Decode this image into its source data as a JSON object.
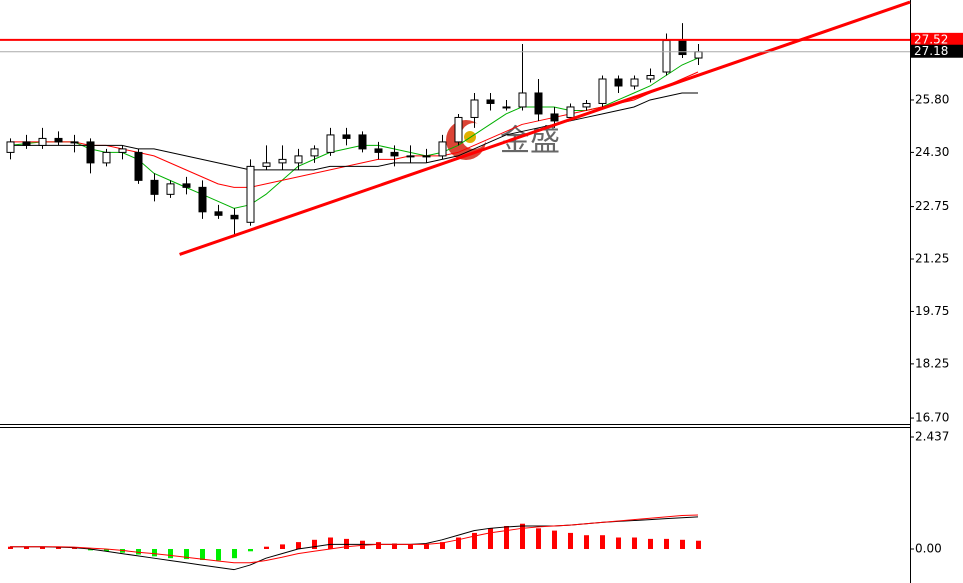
{
  "chart_data": [
    {
      "type": "candlestick",
      "watermark": "金盛",
      "ylim": [
        16.53,
        28.66
      ],
      "yticks": [
        {
          "value": 25.8,
          "label": "25.80"
        },
        {
          "value": 24.3,
          "label": "24.30"
        },
        22.75,
        21.25,
        19.75,
        18.25,
        {
          "value": 16.7,
          "label": "16.70"
        }
      ],
      "up_color": "#ffffff",
      "down_color": "#000000",
      "wick_color": "#000000",
      "open": [
        24.3,
        24.6,
        24.5,
        24.7,
        24.6,
        24.6,
        24.0,
        24.3,
        24.3,
        23.5,
        23.1,
        23.4,
        23.3,
        22.6,
        22.5,
        22.3,
        23.9,
        24.0,
        24.0,
        24.2,
        24.3,
        24.8,
        24.8,
        24.4,
        24.3,
        24.2,
        24.2,
        24.2,
        24.6,
        25.3,
        25.8,
        25.6,
        25.6,
        26.0,
        25.4,
        25.3,
        25.6,
        25.7,
        26.4,
        26.2,
        26.4,
        26.6,
        27.5,
        27.0
      ],
      "high": [
        24.7,
        24.8,
        25.0,
        24.9,
        24.8,
        24.7,
        24.4,
        24.5,
        24.4,
        23.7,
        23.5,
        23.6,
        23.5,
        22.8,
        22.7,
        24.1,
        24.5,
        24.5,
        24.4,
        24.5,
        25.0,
        25.0,
        24.9,
        24.6,
        24.5,
        24.5,
        24.4,
        24.8,
        25.4,
        26.0,
        26.0,
        25.8,
        27.4,
        26.4,
        25.6,
        25.7,
        25.8,
        26.5,
        26.5,
        26.5,
        26.7,
        27.7,
        28.0,
        27.4
      ],
      "low": [
        24.1,
        24.4,
        24.4,
        24.5,
        24.3,
        23.7,
        23.9,
        24.1,
        23.4,
        22.9,
        23.0,
        23.1,
        22.4,
        22.4,
        21.9,
        22.2,
        23.8,
        23.8,
        23.8,
        24.0,
        24.2,
        24.5,
        24.3,
        24.1,
        23.9,
        24.0,
        24.0,
        24.1,
        24.5,
        25.0,
        25.5,
        25.5,
        25.5,
        25.2,
        25.0,
        25.2,
        25.5,
        25.6,
        26.0,
        26.1,
        26.3,
        26.5,
        27.0,
        26.8
      ],
      "close": [
        24.6,
        24.5,
        24.7,
        24.6,
        24.6,
        24.0,
        24.3,
        24.4,
        23.5,
        23.1,
        23.4,
        23.3,
        22.6,
        22.5,
        22.4,
        23.9,
        24.0,
        24.1,
        24.2,
        24.4,
        24.8,
        24.7,
        24.4,
        24.3,
        24.2,
        24.2,
        24.2,
        24.6,
        25.3,
        25.8,
        25.7,
        25.6,
        26.0,
        25.4,
        25.2,
        25.6,
        25.7,
        26.4,
        26.2,
        26.4,
        26.5,
        27.5,
        27.1,
        27.18
      ],
      "series": [
        {
          "color": "#00b000",
          "values": [
            24.5,
            24.55,
            24.6,
            24.6,
            24.6,
            24.4,
            24.3,
            24.3,
            24.1,
            23.7,
            23.5,
            23.3,
            23.1,
            22.9,
            22.7,
            22.8,
            23.1,
            23.5,
            23.9,
            24.1,
            24.3,
            24.4,
            24.5,
            24.5,
            24.4,
            24.3,
            24.2,
            24.3,
            24.5,
            24.8,
            25.1,
            25.4,
            25.6,
            25.6,
            25.6,
            25.5,
            25.5,
            25.6,
            25.8,
            26.0,
            26.2,
            26.5,
            26.8,
            27.0
          ]
        },
        {
          "color": "#ff0000",
          "values": [
            24.6,
            24.6,
            24.6,
            24.6,
            24.6,
            24.5,
            24.5,
            24.4,
            24.3,
            24.2,
            24.0,
            23.8,
            23.6,
            23.4,
            23.3,
            23.3,
            23.4,
            23.5,
            23.6,
            23.7,
            23.8,
            23.9,
            24.0,
            24.1,
            24.1,
            24.2,
            24.2,
            24.2,
            24.3,
            24.5,
            24.7,
            24.9,
            25.1,
            25.2,
            25.3,
            25.4,
            25.5,
            25.6,
            25.7,
            25.8,
            26.0,
            26.2,
            26.4,
            26.6
          ]
        },
        {
          "color": "#000000",
          "values": [
            24.5,
            24.5,
            24.5,
            24.5,
            24.5,
            24.5,
            24.5,
            24.5,
            24.4,
            24.4,
            24.3,
            24.2,
            24.1,
            24.0,
            23.9,
            23.8,
            23.8,
            23.8,
            23.8,
            23.8,
            23.9,
            23.9,
            23.9,
            23.9,
            24.0,
            24.0,
            24.0,
            24.1,
            24.2,
            24.4,
            24.6,
            24.8,
            24.9,
            25.0,
            25.1,
            25.2,
            25.3,
            25.4,
            25.5,
            25.6,
            25.8,
            25.9,
            26.0,
            26.0
          ]
        }
      ],
      "price_lines": [
        {
          "value": 27.52,
          "label": "27.52",
          "color": "#ff0000"
        },
        {
          "value": 27.18,
          "label": "27.18",
          "color": "#000000"
        }
      ],
      "trendline": {
        "x": [
          10.6,
          56.25
        ],
        "values": [
          21.38,
          28.6
        ],
        "color": "#ff0000"
      }
    },
    {
      "type": "macd",
      "ylim": [
        -0.74,
        2.633
      ],
      "yticks": [
        2.437,
        {
          "value": 0,
          "label": "0.00"
        }
      ],
      "up_color": "#ff0000",
      "down_color": "#00ee00",
      "values": [
        0.05,
        0.05,
        0.05,
        0.04,
        0.02,
        -0.03,
        -0.05,
        -0.08,
        -0.12,
        -0.16,
        -0.2,
        -0.22,
        -0.24,
        -0.25,
        -0.2,
        -0.05,
        0.05,
        0.1,
        0.15,
        0.2,
        0.25,
        0.22,
        0.18,
        0.15,
        0.12,
        0.1,
        0.1,
        0.15,
        0.25,
        0.35,
        0.45,
        0.5,
        0.55,
        0.45,
        0.4,
        0.35,
        0.3,
        0.3,
        0.25,
        0.25,
        0.22,
        0.22,
        0.2,
        0.18
      ],
      "series": [
        {
          "color": "#000000",
          "values": [
            0.05,
            0.05,
            0.05,
            0.04,
            0.03,
            0,
            -0.05,
            -0.1,
            -0.15,
            -0.2,
            -0.25,
            -0.3,
            -0.35,
            -0.4,
            -0.45,
            -0.35,
            -0.2,
            -0.1,
            0,
            0.05,
            0.1,
            0.1,
            0.1,
            0.1,
            0.1,
            0.1,
            0.12,
            0.2,
            0.3,
            0.4,
            0.45,
            0.48,
            0.5,
            0.5,
            0.5,
            0.52,
            0.55,
            0.58,
            0.6,
            0.62,
            0.64,
            0.66,
            0.68,
            0.7
          ]
        },
        {
          "color": "#ff0000",
          "values": [
            0.05,
            0.05,
            0.05,
            0.05,
            0.04,
            0.02,
            0,
            -0.03,
            -0.07,
            -0.1,
            -0.14,
            -0.18,
            -0.22,
            -0.26,
            -0.3,
            -0.3,
            -0.25,
            -0.18,
            -0.1,
            -0.05,
            0,
            0.05,
            0.08,
            0.1,
            0.1,
            0.1,
            0.1,
            0.13,
            0.2,
            0.28,
            0.35,
            0.4,
            0.45,
            0.48,
            0.5,
            0.52,
            0.55,
            0.58,
            0.61,
            0.64,
            0.67,
            0.7,
            0.73,
            0.74
          ]
        }
      ]
    }
  ]
}
